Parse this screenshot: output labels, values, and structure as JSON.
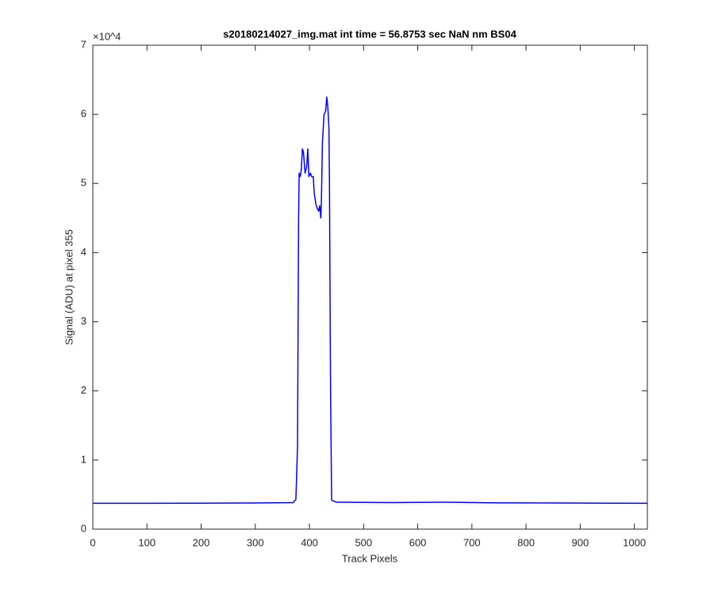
{
  "chart_data": {
    "type": "line",
    "title": "s20180214027_img.mat int time = 56.8753 sec  NaN nm BS04",
    "x_label": "Track Pixels",
    "y_label": "Signal (ADU) at pixel 355",
    "y_exponent_label": "×10^4",
    "x": [
      0,
      100,
      200,
      300,
      370,
      375,
      378,
      380,
      381,
      383,
      385,
      387,
      389,
      392,
      395,
      397,
      399,
      402,
      404,
      407,
      409,
      412,
      414,
      417,
      419,
      421,
      422,
      424,
      427,
      430,
      432,
      434,
      436,
      437,
      439,
      441,
      450,
      550,
      650,
      750,
      850,
      950,
      1024
    ],
    "series": [
      {
        "name": "Signal",
        "color": "#0000ff",
        "values": [
          3750,
          3750,
          3760,
          3780,
          3850,
          4300,
          12000,
          45000,
          51500,
          51000,
          52000,
          55000,
          54500,
          51500,
          52500,
          55000,
          51000,
          51500,
          51000,
          51000,
          48500,
          47000,
          46500,
          46000,
          46800,
          45000,
          47000,
          56000,
          60000,
          60500,
          62500,
          61000,
          58000,
          50000,
          20000,
          4200,
          3900,
          3850,
          3900,
          3800,
          3780,
          3760,
          3750
        ]
      }
    ],
    "xlim": [
      0,
      1024
    ],
    "ylim": [
      0,
      70000
    ],
    "xticks": [
      0,
      100,
      200,
      300,
      400,
      500,
      600,
      700,
      800,
      900,
      1000
    ],
    "yticks": [
      {
        "value": 0,
        "label": "0"
      },
      {
        "value": 10000,
        "label": "1"
      },
      {
        "value": 20000,
        "label": "2"
      },
      {
        "value": 30000,
        "label": "3"
      },
      {
        "value": 40000,
        "label": "4"
      },
      {
        "value": 50000,
        "label": "5"
      },
      {
        "value": 60000,
        "label": "6"
      },
      {
        "value": 70000,
        "label": "7"
      }
    ],
    "grid": false
  }
}
